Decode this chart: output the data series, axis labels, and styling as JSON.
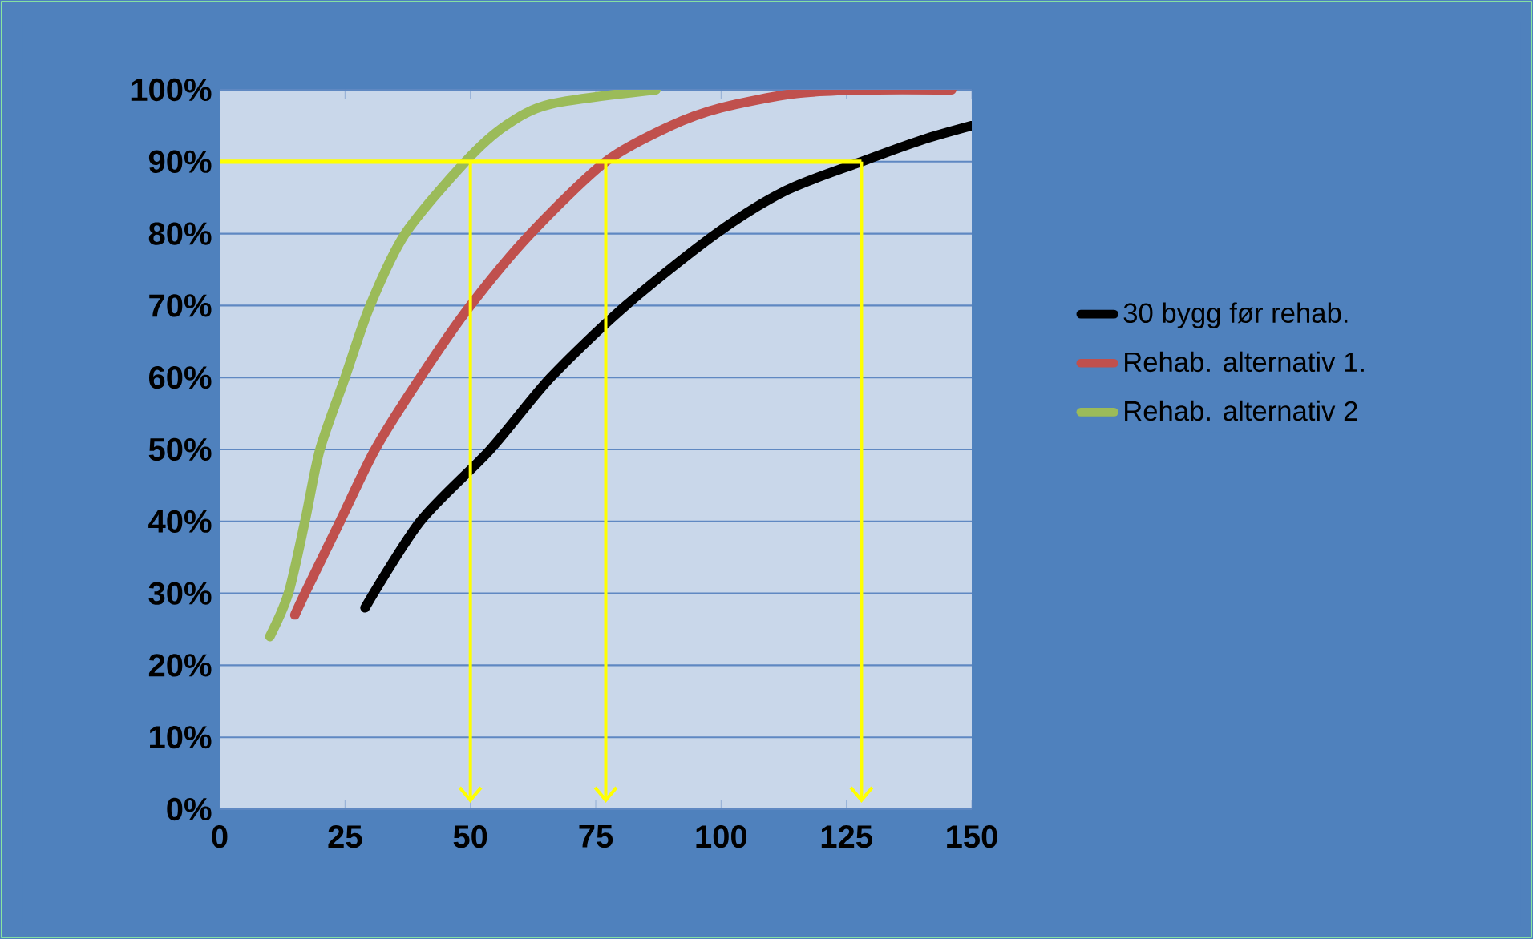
{
  "chart_data": {
    "type": "line",
    "xlim": [
      0,
      150
    ],
    "xticks": [
      0,
      25,
      50,
      75,
      100,
      125,
      150
    ],
    "ylim": [
      0,
      100
    ],
    "yticks": [
      {
        "value": 0,
        "label": "0%"
      },
      {
        "value": 10,
        "label": "10%"
      },
      {
        "value": 20,
        "label": "20%"
      },
      {
        "value": 30,
        "label": "30%"
      },
      {
        "value": 40,
        "label": "40%"
      },
      {
        "value": 50,
        "label": "50%"
      },
      {
        "value": 60,
        "label": "60%"
      },
      {
        "value": 70,
        "label": "70%"
      },
      {
        "value": 80,
        "label": "80%"
      },
      {
        "value": 90,
        "label": "90%"
      },
      {
        "value": 100,
        "label": "100%"
      }
    ],
    "grid": "y",
    "legend": "right",
    "marker": "none",
    "series": [
      {
        "name": "30 bygg før rehab.",
        "color": "#000000",
        "x": [
          29,
          40,
          54,
          66,
          81,
          99,
          113,
          128,
          140,
          150
        ],
        "values": [
          28,
          40,
          50,
          60,
          70,
          80,
          86,
          90,
          93,
          95
        ]
      },
      {
        "name": "Rehab. alternativ 1.",
        "color": "#c0504d",
        "x": [
          15,
          17,
          24,
          31,
          40,
          50,
          62,
          77,
          90,
          100,
          115,
          130,
          146
        ],
        "values": [
          27,
          30,
          40,
          50,
          60,
          70,
          80,
          90,
          95,
          97.5,
          99.5,
          100,
          100
        ]
      },
      {
        "name": "Rehab. alternativ 2",
        "color": "#9bbb59",
        "x": [
          10,
          13.7,
          17,
          20,
          25,
          30,
          37,
          49,
          57,
          66,
          87
        ],
        "values": [
          24,
          30,
          40,
          50,
          60,
          70,
          80,
          90,
          95,
          98,
          100
        ]
      }
    ],
    "ref_lines": [
      {
        "axis": "y",
        "value": 90,
        "color": "#ffff00"
      },
      {
        "axis": "x",
        "value": 50,
        "color": "#ffff00"
      },
      {
        "axis": "x",
        "value": 77,
        "color": "#ffff00"
      },
      {
        "axis": "x",
        "value": 128,
        "color": "#ffff00"
      }
    ]
  }
}
